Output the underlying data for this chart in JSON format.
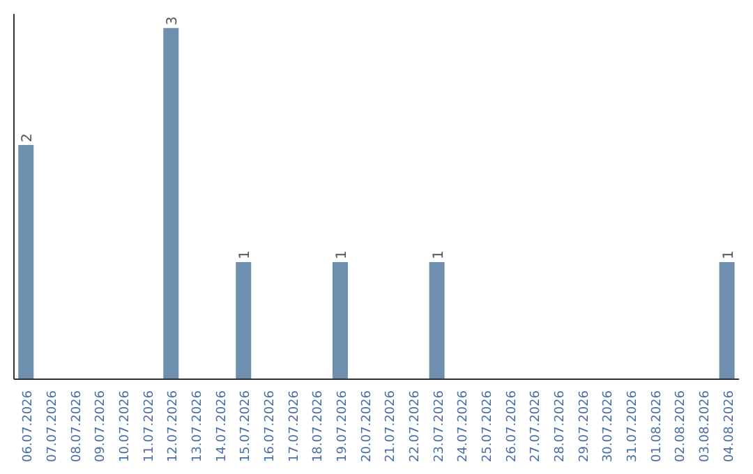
{
  "chart_data": {
    "type": "bar",
    "categories": [
      "06.07.2026",
      "07.07.2026",
      "08.07.2026",
      "09.07.2026",
      "10.07.2026",
      "11.07.2026",
      "12.07.2026",
      "13.07.2026",
      "14.07.2026",
      "15.07.2026",
      "16.07.2026",
      "17.07.2026",
      "18.07.2026",
      "19.07.2026",
      "20.07.2026",
      "21.07.2026",
      "22.07.2026",
      "23.07.2026",
      "24.07.2026",
      "25.07.2026",
      "26.07.2026",
      "27.07.2026",
      "28.07.2026",
      "29.07.2026",
      "30.07.2026",
      "31.07.2026",
      "01.08.2026",
      "02.08.2026",
      "03.08.2026",
      "04.08.2026"
    ],
    "values": [
      2,
      0,
      0,
      0,
      0,
      0,
      3,
      0,
      0,
      1,
      0,
      0,
      0,
      1,
      0,
      0,
      0,
      1,
      0,
      0,
      0,
      0,
      0,
      0,
      0,
      0,
      0,
      0,
      0,
      1
    ],
    "color": "#6e8fad",
    "value_labels": [
      "2",
      null,
      null,
      null,
      null,
      null,
      "3",
      null,
      null,
      "1",
      null,
      null,
      null,
      "1",
      null,
      null,
      null,
      "1",
      null,
      null,
      null,
      null,
      null,
      null,
      null,
      null,
      null,
      null,
      null,
      "1"
    ]
  }
}
